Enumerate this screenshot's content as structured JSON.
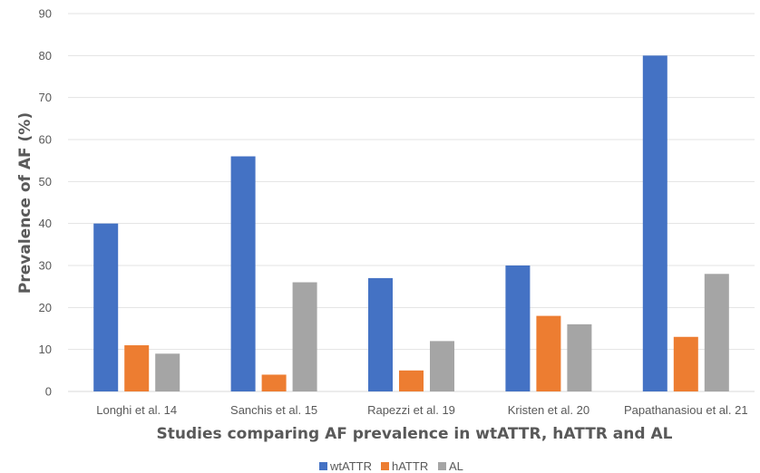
{
  "chart_data": {
    "type": "bar",
    "title": "",
    "xlabel": "Studies comparing AF prevalence in wtATTR, hATTR and AL",
    "ylabel": "Prevalence of AF (%)",
    "ylim": [
      0,
      90
    ],
    "yticks": [
      0,
      10,
      20,
      30,
      40,
      50,
      60,
      70,
      80,
      90
    ],
    "grid": true,
    "legend_position": "bottom",
    "categories": [
      "Longhi et al. 14",
      "Sanchis et al. 15",
      "Rapezzi et al. 19",
      "Kristen et al. 20",
      "Papathanasiou et al. 21"
    ],
    "series": [
      {
        "name": "wtATTR",
        "color": "#4472C4",
        "values": [
          40,
          56,
          27,
          30,
          80
        ]
      },
      {
        "name": "hATTR",
        "color": "#ED7D31",
        "values": [
          11,
          4,
          5,
          18,
          13
        ]
      },
      {
        "name": "AL",
        "color": "#A5A5A5",
        "values": [
          9,
          26,
          12,
          16,
          28
        ]
      }
    ]
  }
}
